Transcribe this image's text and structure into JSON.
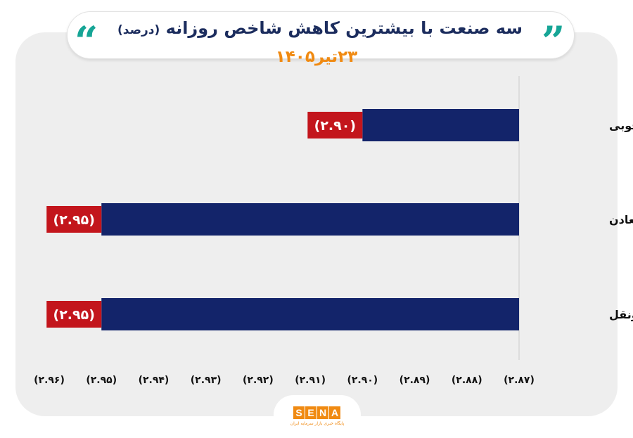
{
  "header": {
    "title": "سه صنعت با بیشترین کاهش شاخص روزانه",
    "title_unit": "(درصد)",
    "date": "۲۳تیر۱۴۰۵"
  },
  "chart_data": {
    "type": "bar",
    "orientation": "horizontal",
    "categories": [
      "محصولات چوبی",
      "سایرمعادن",
      "حمل ونقل"
    ],
    "values": [
      -2.9,
      -2.95,
      -2.95
    ],
    "value_labels": [
      "(۲.۹۰)",
      "(۲.۹۵)",
      "(۲.۹۵)"
    ],
    "xlim": [
      -2.96,
      -2.87
    ],
    "x_ticks": [
      -2.96,
      -2.95,
      -2.94,
      -2.93,
      -2.92,
      -2.91,
      -2.9,
      -2.89,
      -2.88,
      -2.87
    ],
    "x_tick_labels": [
      "(۲.۹۶)",
      "(۲.۹۵)",
      "(۲.۹۴)",
      "(۲.۹۳)",
      "(۲.۹۲)",
      "(۲.۹۱)",
      "(۲.۹۰)",
      "(۲.۸۹)",
      "(۲.۸۸)",
      "(۲.۸۷)"
    ],
    "grid": false,
    "bar_color": "#13246a",
    "label_bg_color": "#c3151c"
  },
  "logo": {
    "letters": [
      "S",
      "E",
      "N",
      "A"
    ],
    "tagline": "پایگاه خبری بازار سرمایه ایران"
  }
}
